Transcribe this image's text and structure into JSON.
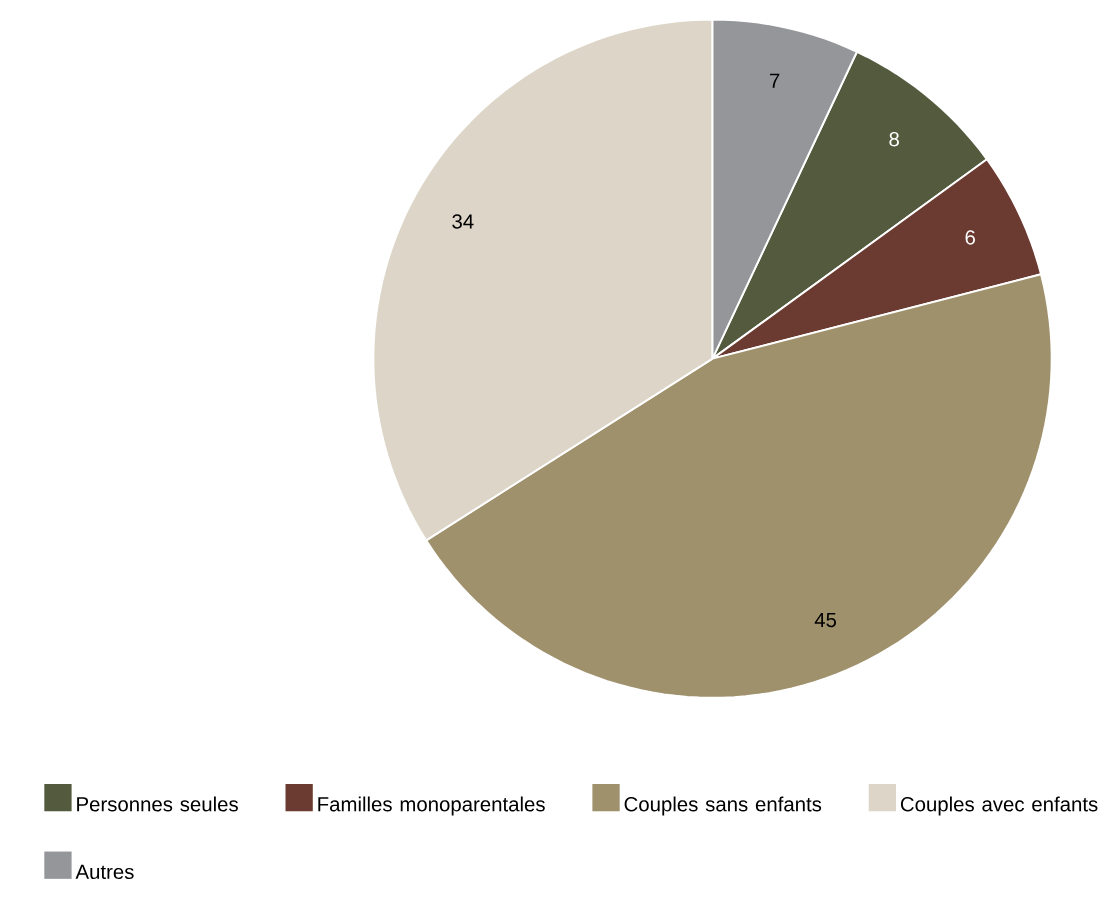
{
  "chart_data": {
    "type": "pie",
    "categories": [
      "Personnes seules",
      "Familles monoparentales",
      "Couples sans enfants",
      "Couples avec enfants",
      "Autres"
    ],
    "values": [
      8,
      6,
      45,
      34,
      7
    ],
    "colors": [
      "#535a3e",
      "#6b3a30",
      "#a0916d",
      "#dcd5c8",
      "#94969a"
    ],
    "data_labels": true,
    "legend": "bottom"
  }
}
